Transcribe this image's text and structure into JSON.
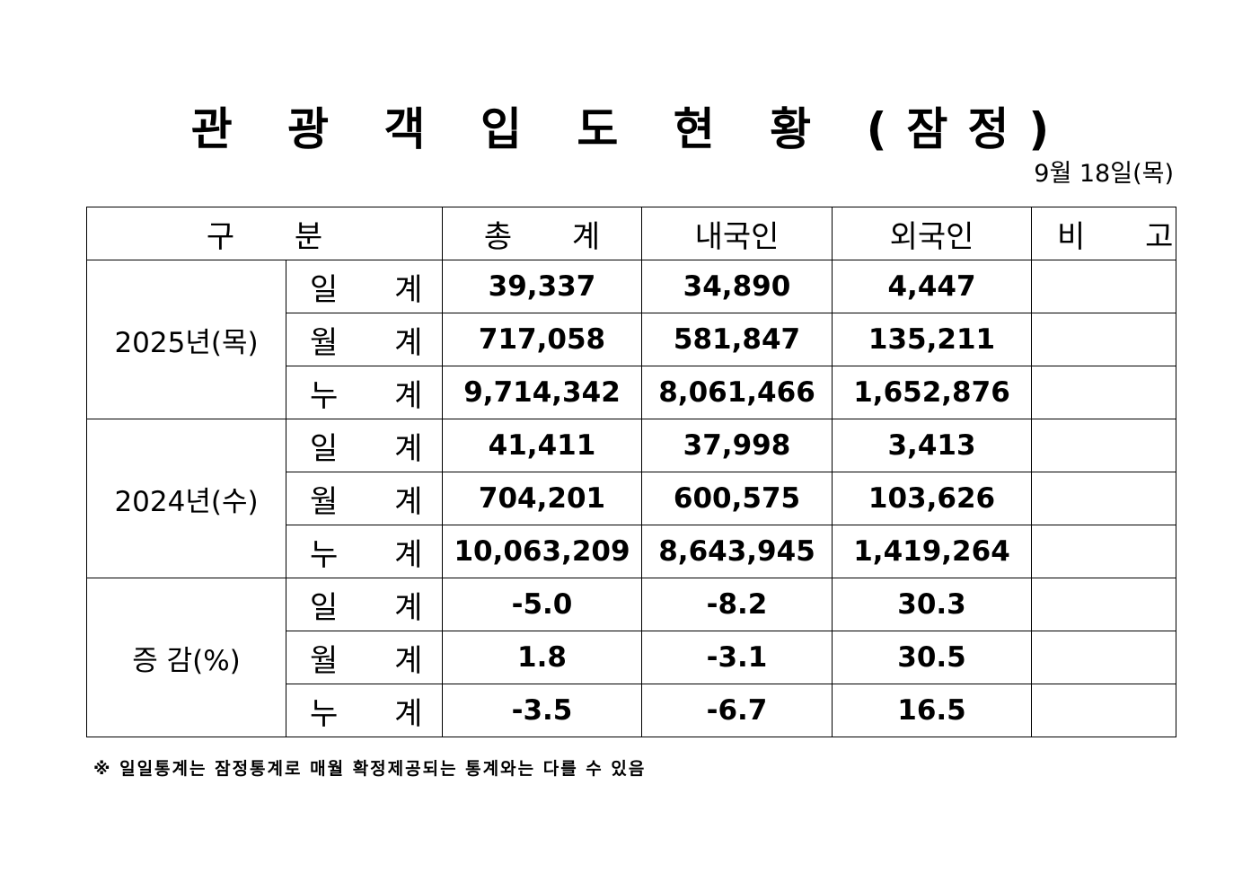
{
  "title": "관 광 객 입 도 현 황 (잠정)",
  "date": "9월 18일(목)",
  "table": {
    "header": {
      "category": "구 분",
      "total": "총 계",
      "domestic": "내국인",
      "foreign": "외국인",
      "remarks": "비 고"
    },
    "groups": [
      {
        "label": "2025년(목)",
        "rows": [
          {
            "sub": "일 계",
            "total": "39,337",
            "domestic": "34,890",
            "foreign": "4,447",
            "remarks": ""
          },
          {
            "sub": "월 계",
            "total": "717,058",
            "domestic": "581,847",
            "foreign": "135,211",
            "remarks": ""
          },
          {
            "sub": "누 계",
            "total": "9,714,342",
            "domestic": "8,061,466",
            "foreign": "1,652,876",
            "remarks": ""
          }
        ]
      },
      {
        "label": "2024년(수)",
        "rows": [
          {
            "sub": "일 계",
            "total": "41,411",
            "domestic": "37,998",
            "foreign": "3,413",
            "remarks": ""
          },
          {
            "sub": "월 계",
            "total": "704,201",
            "domestic": "600,575",
            "foreign": "103,626",
            "remarks": ""
          },
          {
            "sub": "누 계",
            "total": "10,063,209",
            "domestic": "8,643,945",
            "foreign": "1,419,264",
            "remarks": ""
          }
        ]
      },
      {
        "label": "증 감(%)",
        "rows": [
          {
            "sub": "일 계",
            "total": "-5.0",
            "domestic": "-8.2",
            "foreign": "30.3",
            "remarks": ""
          },
          {
            "sub": "월 계",
            "total": "1.8",
            "domestic": "-3.1",
            "foreign": "30.5",
            "remarks": ""
          },
          {
            "sub": "누 계",
            "total": "-3.5",
            "domestic": "-6.7",
            "foreign": "16.5",
            "remarks": ""
          }
        ]
      }
    ]
  },
  "footnote": "※ 일일통계는 잠정통계로 매월 확정제공되는 통계와는 다를 수 있음"
}
